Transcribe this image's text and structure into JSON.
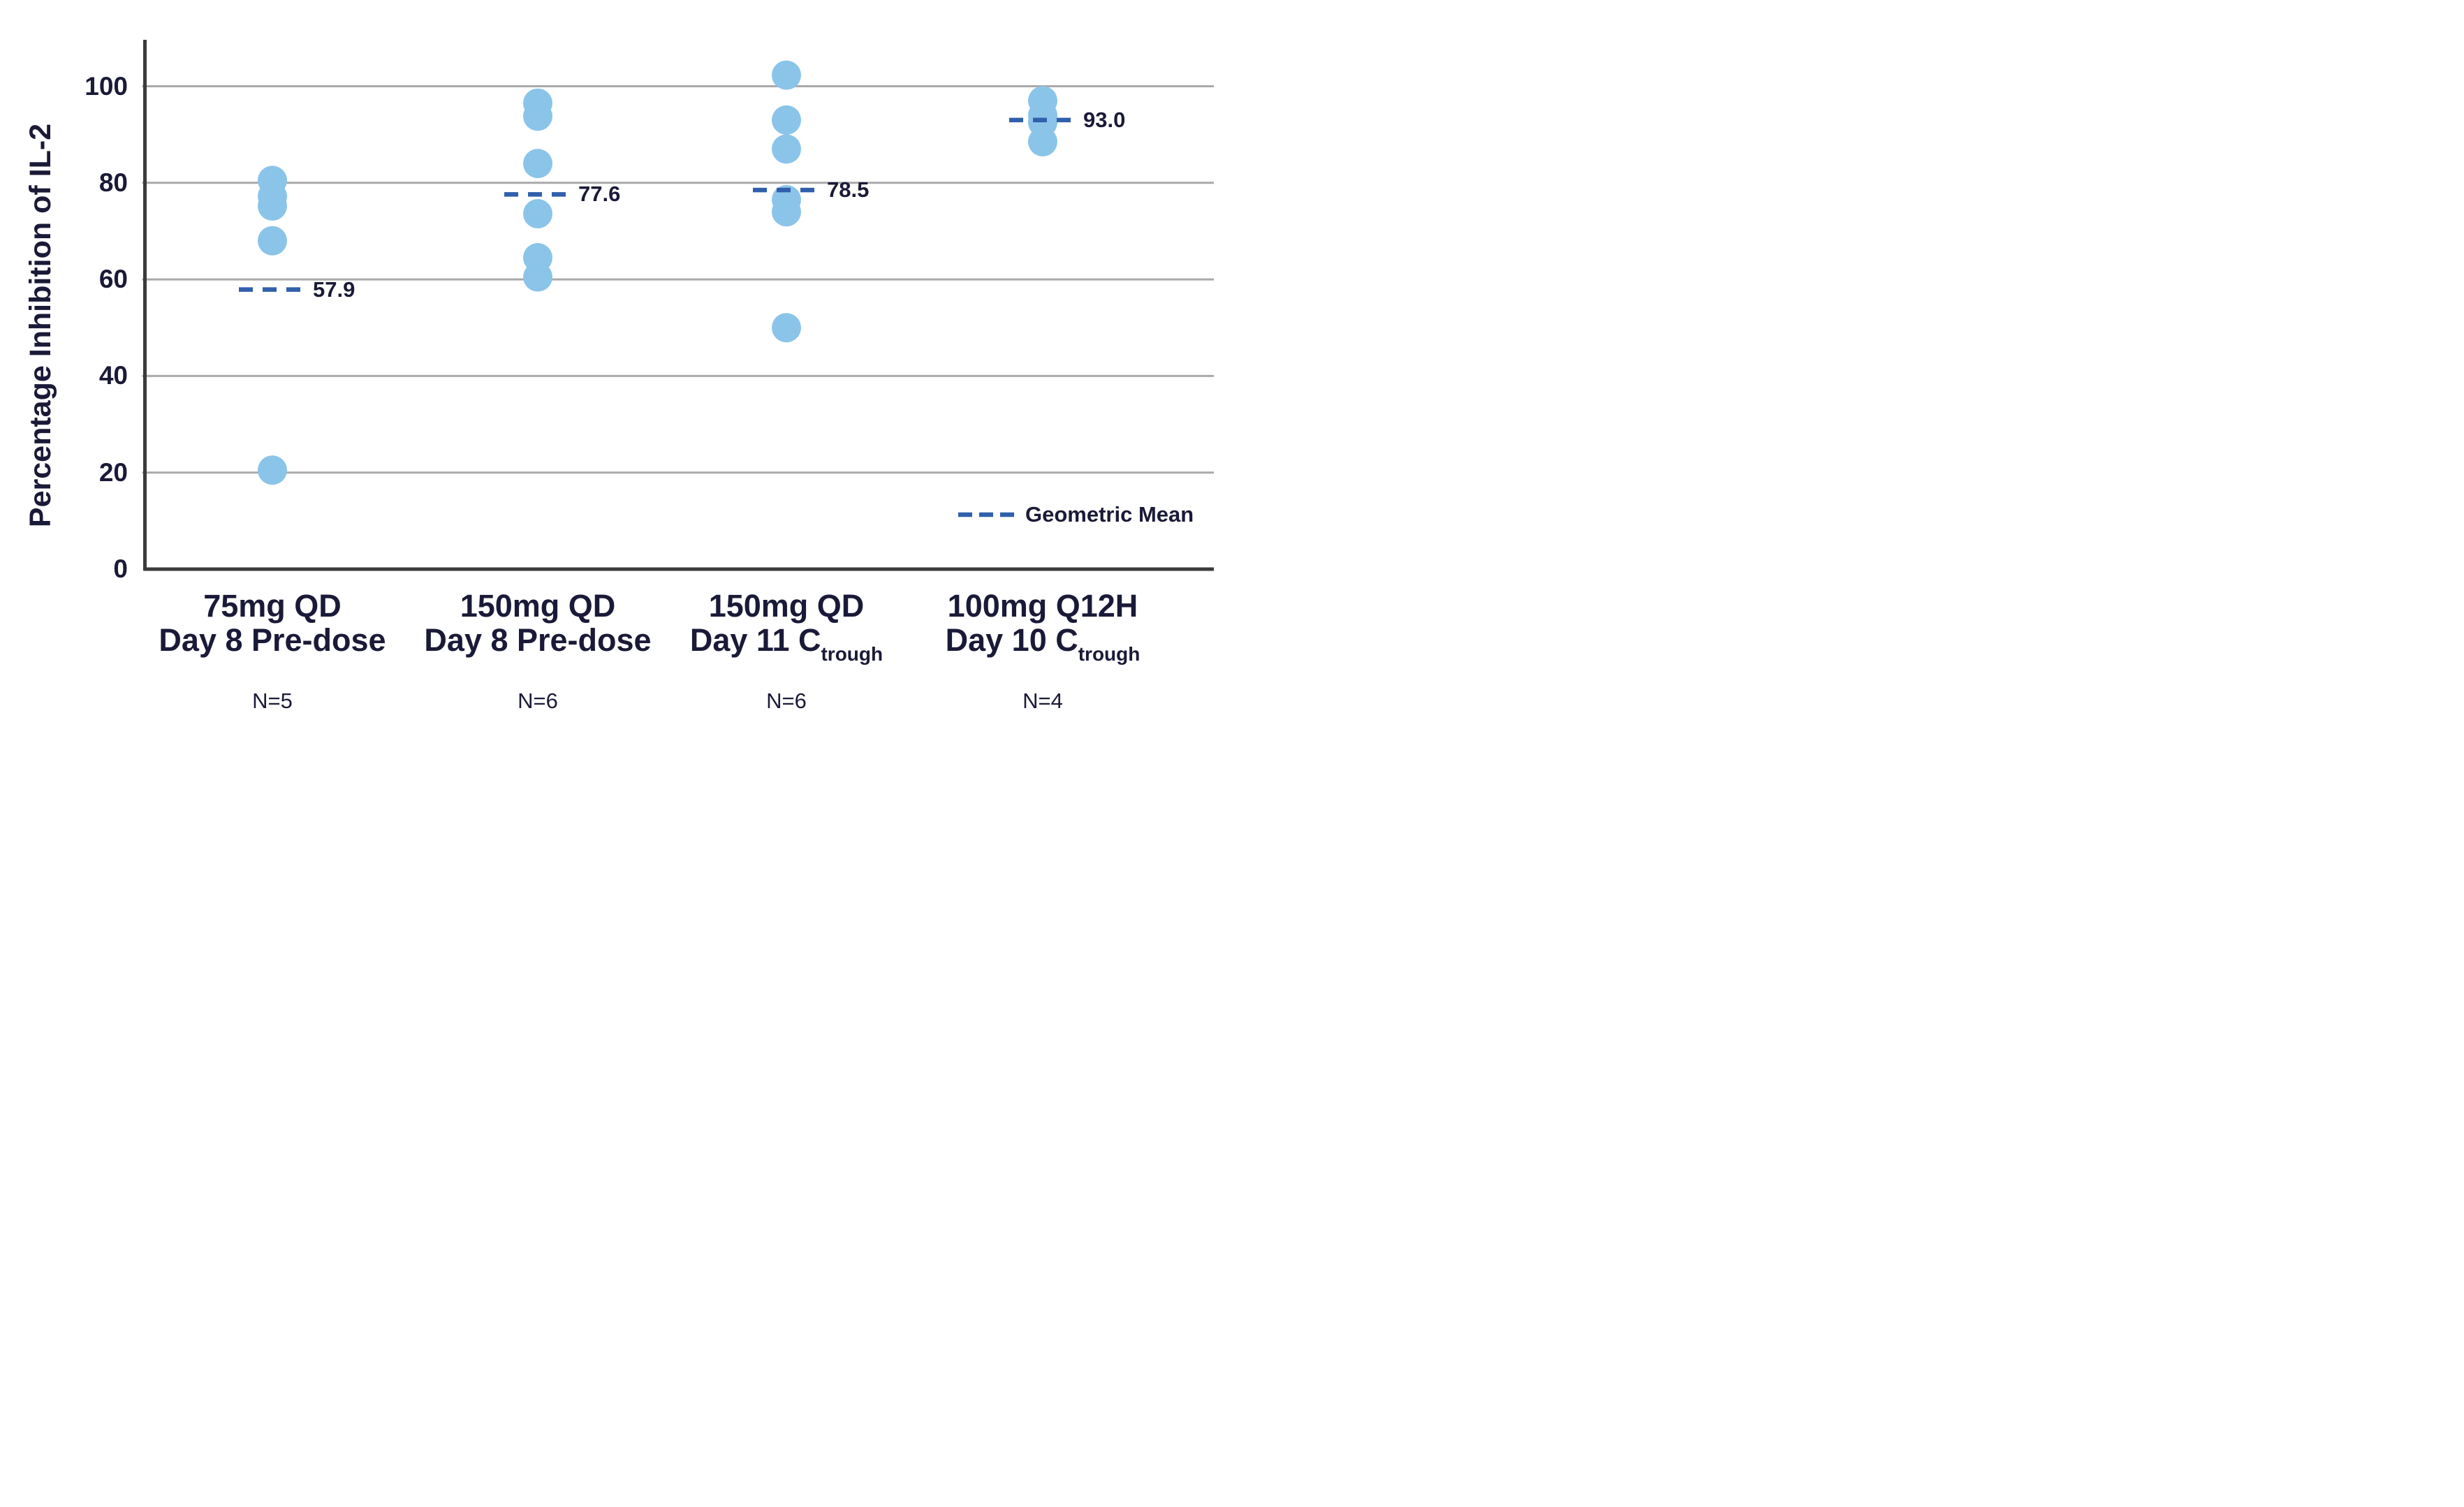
{
  "chart_data": {
    "type": "scatter",
    "title": "",
    "xlabel": "",
    "ylabel": "Percentage Inhibition of IL-2",
    "ylim": [
      0,
      110
    ],
    "yticks": [
      100,
      80,
      60,
      40,
      20,
      0
    ],
    "grid": "horizontal",
    "legend": {
      "label": "Geometric Mean",
      "position": "bottom-right",
      "style": "dashed"
    },
    "groups": [
      {
        "line1": "75mg QD",
        "line2": "Day 8 Pre-dose",
        "subscript": "",
        "n_label": "N=5",
        "mean_label": "57.9",
        "geometric_mean": 57.9,
        "values": [
          80.5,
          77.2,
          75.2,
          68,
          20.5
        ]
      },
      {
        "line1": "150mg QD",
        "line2": "Day 8 Pre-dose",
        "subscript": "",
        "n_label": "N=6",
        "mean_label": "77.6",
        "geometric_mean": 77.6,
        "values": [
          96.5,
          93.8,
          84,
          73.6,
          64.5,
          60.5
        ]
      },
      {
        "line1": "150mg QD",
        "line2": "Day 11 C",
        "subscript": "trough",
        "n_label": "N=6",
        "mean_label": "78.5",
        "geometric_mean": 78.5,
        "values": [
          102.3,
          93,
          87,
          76.5,
          74,
          50
        ]
      },
      {
        "line1": "100mg Q12H",
        "line2": "Day 10 C",
        "subscript": "trough",
        "n_label": "N=4",
        "mean_label": "93.0",
        "geometric_mean": 93.0,
        "values": [
          97,
          94,
          92.5,
          88.5
        ]
      }
    ],
    "colors": {
      "dot": "#8BC4E9",
      "mean_dash": "#3060AC",
      "text": "#1A1A38",
      "gridline": "#A9A9A9",
      "axis": "#3B3B3B"
    }
  }
}
